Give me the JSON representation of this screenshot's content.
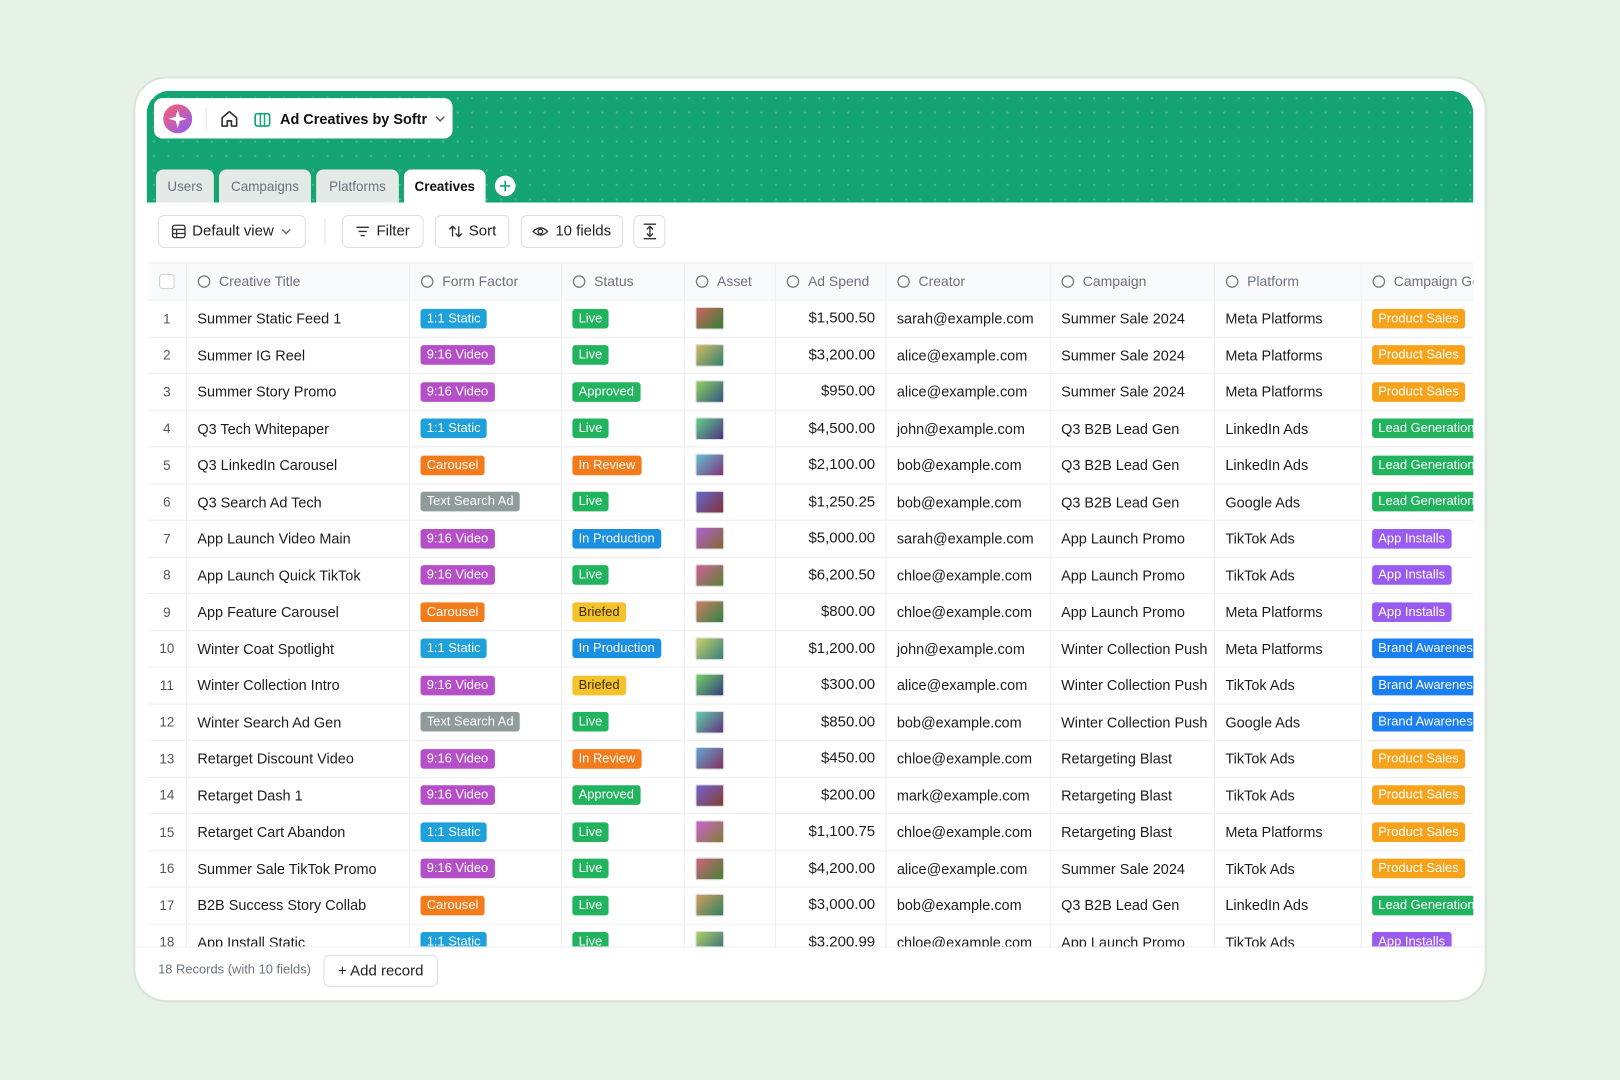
{
  "header": {
    "app_title": "Ad Creatives by Softr"
  },
  "tabs": [
    "Users",
    "Campaigns",
    "Platforms",
    "Creatives"
  ],
  "toolbar": {
    "view": "Default view",
    "filter": "Filter",
    "sort": "Sort",
    "fields": "10 fields"
  },
  "table": {
    "columns": [
      "Creative Title",
      "Form Factor",
      "Status",
      "Asset",
      "Ad Spend",
      "Creator",
      "Campaign",
      "Platform",
      "Campaign Goal"
    ],
    "rows": [
      {
        "number": 1,
        "creative_title": "Summer Static Feed 1",
        "form_factor": {
          "text": "1:1 Static",
          "color": "#1ea0db"
        },
        "status": {
          "text": "Live",
          "color": "#22b35e"
        },
        "ad_spend": "$1,500.50",
        "creator": "sarah@example.com",
        "campaign": "Summer Sale 2024",
        "platform": "Meta Platforms",
        "campaign_goal": {
          "text": "Product Sales",
          "color": "#f7a21b"
        }
      },
      {
        "number": 2,
        "creative_title": "Summer IG Reel",
        "form_factor": {
          "text": "9:16 Video",
          "color": "#b44fc7"
        },
        "status": {
          "text": "Live",
          "color": "#22b35e"
        },
        "ad_spend": "$3,200.00",
        "creator": "alice@example.com",
        "campaign": "Summer Sale 2024",
        "platform": "Meta Platforms",
        "campaign_goal": {
          "text": "Product Sales",
          "color": "#f7a21b"
        }
      },
      {
        "number": 3,
        "creative_title": "Summer Story Promo",
        "form_factor": {
          "text": "9:16 Video",
          "color": "#b44fc7"
        },
        "status": {
          "text": "Approved",
          "color": "#22b35e"
        },
        "ad_spend": "$950.00",
        "creator": "alice@example.com",
        "campaign": "Summer Sale 2024",
        "platform": "Meta Platforms",
        "campaign_goal": {
          "text": "Product Sales",
          "color": "#f7a21b"
        }
      },
      {
        "number": 4,
        "creative_title": "Q3 Tech Whitepaper",
        "form_factor": {
          "text": "1:1 Static",
          "color": "#1ea0db"
        },
        "status": {
          "text": "Live",
          "color": "#22b35e"
        },
        "ad_spend": "$4,500.00",
        "creator": "john@example.com",
        "campaign": "Q3 B2B Lead Gen",
        "platform": "LinkedIn Ads",
        "campaign_goal": {
          "text": "Lead Generation",
          "color": "#22b35e"
        }
      },
      {
        "number": 5,
        "creative_title": "Q3 LinkedIn Carousel",
        "form_factor": {
          "text": "Carousel",
          "color": "#f27b1c"
        },
        "status": {
          "text": "In Review",
          "color": "#f27b1c"
        },
        "ad_spend": "$2,100.00",
        "creator": "bob@example.com",
        "campaign": "Q3 B2B Lead Gen",
        "platform": "LinkedIn Ads",
        "campaign_goal": {
          "text": "Lead Generation",
          "color": "#22b35e"
        }
      },
      {
        "number": 6,
        "creative_title": "Q3 Search Ad Tech",
        "form_factor": {
          "text": "Text Search Ad",
          "color": "#8f9c9b"
        },
        "status": {
          "text": "Live",
          "color": "#22b35e"
        },
        "ad_spend": "$1,250.25",
        "creator": "bob@example.com",
        "campaign": "Q3 B2B Lead Gen",
        "platform": "Google Ads",
        "campaign_goal": {
          "text": "Lead Generation",
          "color": "#22b35e"
        }
      },
      {
        "number": 7,
        "creative_title": "App Launch Video Main",
        "form_factor": {
          "text": "9:16 Video",
          "color": "#b44fc7"
        },
        "status": {
          "text": "In Production",
          "color": "#1b90e2"
        },
        "ad_spend": "$5,000.00",
        "creator": "sarah@example.com",
        "campaign": "App Launch Promo",
        "platform": "TikTok Ads",
        "campaign_goal": {
          "text": "App Installs",
          "color": "#9a5cf0"
        }
      },
      {
        "number": 8,
        "creative_title": "App Launch Quick TikTok",
        "form_factor": {
          "text": "9:16 Video",
          "color": "#b44fc7"
        },
        "status": {
          "text": "Live",
          "color": "#22b35e"
        },
        "ad_spend": "$6,200.50",
        "creator": "chloe@example.com",
        "campaign": "App Launch Promo",
        "platform": "TikTok Ads",
        "campaign_goal": {
          "text": "App Installs",
          "color": "#9a5cf0"
        }
      },
      {
        "number": 9,
        "creative_title": "App Feature Carousel",
        "form_factor": {
          "text": "Carousel",
          "color": "#f27b1c"
        },
        "status": {
          "text": "Briefed",
          "color": "#f4c22b",
          "text_color": "#3a2e00"
        },
        "ad_spend": "$800.00",
        "creator": "chloe@example.com",
        "campaign": "App Launch Promo",
        "platform": "Meta Platforms",
        "campaign_goal": {
          "text": "App Installs",
          "color": "#9a5cf0"
        }
      },
      {
        "number": 10,
        "creative_title": "Winter Coat Spotlight",
        "form_factor": {
          "text": "1:1 Static",
          "color": "#1ea0db"
        },
        "status": {
          "text": "In Production",
          "color": "#1b90e2"
        },
        "ad_spend": "$1,200.00",
        "creator": "john@example.com",
        "campaign": "Winter Collection Push",
        "platform": "Meta Platforms",
        "campaign_goal": {
          "text": "Brand Awareness",
          "color": "#1b7ff2"
        }
      },
      {
        "number": 11,
        "creative_title": "Winter Collection Intro",
        "form_factor": {
          "text": "9:16 Video",
          "color": "#b44fc7"
        },
        "status": {
          "text": "Briefed",
          "color": "#f4c22b",
          "text_color": "#3a2e00"
        },
        "ad_spend": "$300.00",
        "creator": "alice@example.com",
        "campaign": "Winter Collection Push",
        "platform": "TikTok Ads",
        "campaign_goal": {
          "text": "Brand Awareness",
          "color": "#1b7ff2"
        }
      },
      {
        "number": 12,
        "creative_title": "Winter Search Ad Gen",
        "form_factor": {
          "text": "Text Search Ad",
          "color": "#8f9c9b"
        },
        "status": {
          "text": "Live",
          "color": "#22b35e"
        },
        "ad_spend": "$850.00",
        "creator": "bob@example.com",
        "campaign": "Winter Collection Push",
        "platform": "Google Ads",
        "campaign_goal": {
          "text": "Brand Awareness",
          "color": "#1b7ff2"
        }
      },
      {
        "number": 13,
        "creative_title": "Retarget Discount Video",
        "form_factor": {
          "text": "9:16 Video",
          "color": "#b44fc7"
        },
        "status": {
          "text": "In Review",
          "color": "#f27b1c"
        },
        "ad_spend": "$450.00",
        "creator": "chloe@example.com",
        "campaign": "Retargeting Blast",
        "platform": "TikTok Ads",
        "campaign_goal": {
          "text": "Product Sales",
          "color": "#f7a21b"
        }
      },
      {
        "number": 14,
        "creative_title": "Retarget Dash 1",
        "form_factor": {
          "text": "9:16 Video",
          "color": "#b44fc7"
        },
        "status": {
          "text": "Approved",
          "color": "#22b35e"
        },
        "ad_spend": "$200.00",
        "creator": "mark@example.com",
        "campaign": "Retargeting Blast",
        "platform": "TikTok Ads",
        "campaign_goal": {
          "text": "Product Sales",
          "color": "#f7a21b"
        }
      },
      {
        "number": 15,
        "creative_title": "Retarget Cart Abandon",
        "form_factor": {
          "text": "1:1 Static",
          "color": "#1ea0db"
        },
        "status": {
          "text": "Live",
          "color": "#22b35e"
        },
        "ad_spend": "$1,100.75",
        "creator": "chloe@example.com",
        "campaign": "Retargeting Blast",
        "platform": "Meta Platforms",
        "campaign_goal": {
          "text": "Product Sales",
          "color": "#f7a21b"
        }
      },
      {
        "number": 16,
        "creative_title": "Summer Sale TikTok Promo",
        "form_factor": {
          "text": "9:16 Video",
          "color": "#b44fc7"
        },
        "status": {
          "text": "Live",
          "color": "#22b35e"
        },
        "ad_spend": "$4,200.00",
        "creator": "alice@example.com",
        "campaign": "Summer Sale 2024",
        "platform": "TikTok Ads",
        "campaign_goal": {
          "text": "Product Sales",
          "color": "#f7a21b"
        }
      },
      {
        "number": 17,
        "creative_title": "B2B Success Story Collab",
        "form_factor": {
          "text": "Carousel",
          "color": "#f27b1c"
        },
        "status": {
          "text": "Live",
          "color": "#22b35e"
        },
        "ad_spend": "$3,000.00",
        "creator": "bob@example.com",
        "campaign": "Q3 B2B Lead Gen",
        "platform": "LinkedIn Ads",
        "campaign_goal": {
          "text": "Lead Generation",
          "color": "#22b35e"
        }
      },
      {
        "number": 18,
        "creative_title": "App Install Static",
        "form_factor": {
          "text": "1:1 Static",
          "color": "#1ea0db"
        },
        "status": {
          "text": "Live",
          "color": "#22b35e"
        },
        "ad_spend": "$3,200.99",
        "creator": "chloe@example.com",
        "campaign": "App Launch Promo",
        "platform": "TikTok Ads",
        "campaign_goal": {
          "text": "App Installs",
          "color": "#9a5cf0"
        }
      }
    ]
  },
  "footer": {
    "records": "18 Records (with 10 fields)",
    "add_record": "+ Add record"
  }
}
